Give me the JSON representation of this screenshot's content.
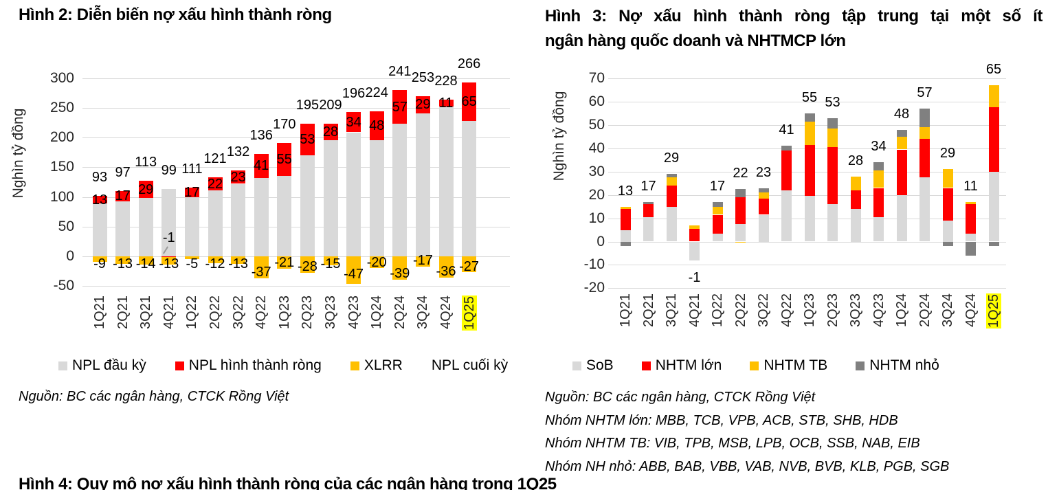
{
  "fig2": {
    "title": "Hình 2: Diễn biến nợ xấu hình thành ròng",
    "y_axis_title": "Nghìn tỷ đồng",
    "legend": [
      {
        "label": "NPL đầu kỳ",
        "color": "#d9d9d9"
      },
      {
        "label": "NPL hình thành ròng",
        "color": "#ff0000"
      },
      {
        "label": "XLRR",
        "color": "#ffc000"
      },
      {
        "label": "NPL cuối kỳ",
        "color": ""
      }
    ],
    "source": "Nguồn: BC các ngân hàng, CTCK Rồng Việt"
  },
  "fig3": {
    "title_line1": "Hình 3: Nợ xấu hình thành ròng tập trung tại một số ít",
    "title_line2": "ngân hàng quốc doanh và NHTMCP lớn",
    "y_axis_title": "Nghìn tỷ đồng",
    "legend": [
      {
        "label": "SoB",
        "color": "#d9d9d9"
      },
      {
        "label": "NHTM lớn",
        "color": "#ff0000"
      },
      {
        "label": "NHTM TB",
        "color": "#ffc000"
      },
      {
        "label": "NHTM nhỏ",
        "color": "#808080"
      }
    ],
    "footnotes": [
      "Nguồn: BC các ngân hàng, CTCK Rồng Việt",
      "Nhóm NHTM lớn: MBB, TCB, VPB, ACB, STB, SHB, HDB",
      "Nhóm NHTM TB: VIB, TPB, MSB, LPB, OCB, SSB, NAB, EIB",
      "Nhóm NH nhỏ: ABB, BAB, VBB, VAB, NVB, BVB, KLB, PGB, SGB"
    ]
  },
  "fig4": {
    "partial_title": "Hình 4: Quy mô nợ xấu hình thành ròng của các ngân hàng trong 1Q25"
  },
  "chart_data": [
    {
      "type": "bar",
      "stacked": true,
      "title": "Hình 2: Diễn biến nợ xấu hình thành ròng",
      "ylabel": "Nghìn tỷ đồng",
      "xlabel": "",
      "ylim": [
        -50,
        300
      ],
      "ytick_step": 50,
      "grid": true,
      "legend_position": "bottom",
      "highlight_category": "1Q25",
      "categories": [
        "1Q21",
        "2Q21",
        "3Q21",
        "4Q21",
        "1Q22",
        "2Q22",
        "3Q22",
        "4Q22",
        "1Q23",
        "2Q23",
        "3Q23",
        "4Q23",
        "1Q24",
        "2Q24",
        "3Q24",
        "4Q24",
        "1Q25"
      ],
      "series": [
        {
          "name": "NPL đầu kỳ",
          "color": "#d9d9d9",
          "values": [
            89,
            93,
            98,
            113,
            99,
            111,
            122,
            132,
            136,
            170,
            196,
            209,
            196,
            223,
            241,
            253,
            228
          ]
        },
        {
          "name": "NPL hình thành ròng",
          "color": "#ff0000",
          "values": [
            13,
            17,
            29,
            -1,
            17,
            22,
            23,
            41,
            55,
            53,
            28,
            34,
            48,
            57,
            29,
            11,
            65
          ]
        },
        {
          "name": "XLRR",
          "color": "#ffc000",
          "values": [
            -9,
            -13,
            -14,
            -13,
            -5,
            -12,
            -13,
            -37,
            -21,
            -28,
            -15,
            -47,
            -20,
            -39,
            -17,
            -36,
            -27
          ]
        }
      ],
      "end_labels": [
        93,
        97,
        113,
        99,
        111,
        121,
        132,
        136,
        170,
        195,
        209,
        196,
        224,
        241,
        253,
        228,
        266
      ]
    },
    {
      "type": "bar",
      "stacked": true,
      "title": "Hình 3: Nợ xấu hình thành ròng tập trung tại một số ít ngân hàng quốc doanh và NHTMCP lớn",
      "ylabel": "Nghìn tỷ đồng",
      "xlabel": "",
      "ylim": [
        -20,
        70
      ],
      "ytick_step": 10,
      "grid": true,
      "legend_position": "bottom",
      "highlight_category": "1Q25",
      "categories": [
        "1Q21",
        "2Q21",
        "3Q21",
        "4Q21",
        "1Q22",
        "2Q22",
        "3Q22",
        "4Q22",
        "1Q23",
        "2Q23",
        "3Q23",
        "4Q23",
        "1Q24",
        "2Q24",
        "3Q24",
        "4Q24",
        "1Q25"
      ],
      "series": [
        {
          "name": "SoB",
          "color": "#d9d9d9",
          "values": [
            5,
            10.5,
            15,
            -8,
            3.5,
            7.5,
            11.5,
            22,
            19.5,
            16,
            14,
            10.5,
            20,
            27.5,
            9,
            3.5,
            30
          ]
        },
        {
          "name": "NHTM lớn",
          "color": "#ff0000",
          "values": [
            9,
            5.5,
            9,
            5.5,
            8,
            11.5,
            7,
            17,
            22,
            24.5,
            8,
            12.5,
            19.5,
            16.5,
            14,
            12.5,
            27.5
          ]
        },
        {
          "name": "NHTM TB",
          "color": "#ffc000",
          "values": [
            1,
            0,
            3.5,
            1.5,
            3.5,
            -0.5,
            2.5,
            0,
            10,
            8,
            6,
            7.5,
            5.5,
            5,
            8,
            1,
            9.5
          ]
        },
        {
          "name": "NHTM nhỏ",
          "color": "#808080",
          "values": [
            -2,
            1,
            1.5,
            0,
            2,
            3.5,
            2,
            2,
            3.5,
            4.5,
            0,
            3.5,
            3,
            8,
            -2,
            -6,
            -2
          ]
        }
      ],
      "total_labels": [
        13,
        17,
        29,
        -1,
        17,
        22,
        23,
        41,
        55,
        53,
        28,
        34,
        48,
        57,
        29,
        11,
        65
      ]
    }
  ]
}
